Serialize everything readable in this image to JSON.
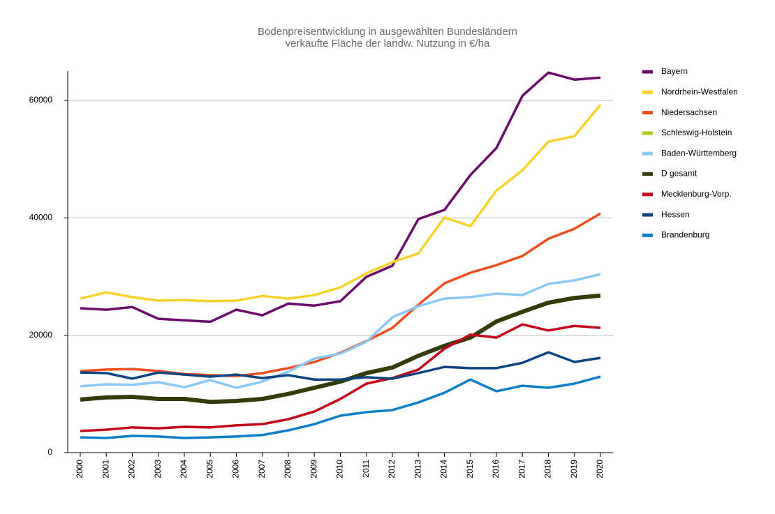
{
  "chart_data": {
    "type": "line",
    "title": "Bodenpreisentwicklung in ausgewählten Bundesländern",
    "subtitle": "verkaufte Fläche der landw. Nutzung in €/ha",
    "categories": [
      "2000",
      "2001",
      "2002",
      "2003",
      "2004",
      "2005",
      "2006",
      "2007",
      "2008",
      "2009",
      "2010",
      "2011",
      "2012",
      "2013",
      "2014",
      "2015",
      "2016",
      "2017",
      "2018",
      "2019",
      "2020"
    ],
    "ylim": [
      0,
      65000
    ],
    "yticks": [
      0,
      20000,
      40000,
      60000
    ],
    "grid": true,
    "legend": "right",
    "series": [
      {
        "name": "Bayern",
        "color": "#6b0a6b",
        "linewidth": 3.5,
        "values": [
          24600,
          24350,
          24800,
          22800,
          22550,
          22300,
          24350,
          23400,
          25400,
          25050,
          25800,
          29950,
          31850,
          39800,
          41350,
          47300,
          51900,
          60800,
          64750,
          63550,
          63900
        ]
      },
      {
        "name": "Nordrhein-Westfalen",
        "color": "#f7d22a",
        "linewidth": 3.5,
        "values": [
          26250,
          27300,
          26500,
          25900,
          26000,
          25800,
          25900,
          26700,
          26250,
          26850,
          28150,
          30550,
          32450,
          33950,
          40050,
          38600,
          44650,
          48100,
          53000,
          53900,
          59300
        ]
      },
      {
        "name": "Niedersachsen",
        "color": "#f04e1e",
        "linewidth": 3.5,
        "values": [
          13900,
          14150,
          14250,
          13900,
          13400,
          13200,
          13050,
          13550,
          14400,
          15450,
          17000,
          19000,
          21250,
          25200,
          28850,
          30650,
          31950,
          33500,
          36450,
          38150,
          40750
        ]
      },
      {
        "name": "Schleswig-Holstein",
        "color": "#a8cc1a",
        "linewidth": 3.5,
        "values": [
          null,
          null,
          null,
          null,
          null,
          null,
          null,
          null,
          null,
          null,
          null,
          null,
          null,
          null,
          null,
          null,
          null,
          null,
          null,
          null,
          null
        ]
      },
      {
        "name": "Baden-Württemberg",
        "color": "#8ac8f5",
        "linewidth": 3.5,
        "values": [
          11300,
          11650,
          11550,
          12000,
          11150,
          12350,
          11050,
          12100,
          13800,
          16050,
          16850,
          18900,
          23050,
          24950,
          26250,
          26500,
          27100,
          26850,
          28750,
          29350,
          30400
        ]
      },
      {
        "name": "D gesamt",
        "color": "#333d0a",
        "linewidth": 6,
        "values": [
          9050,
          9400,
          9500,
          9150,
          9150,
          8650,
          8800,
          9150,
          10000,
          11050,
          12100,
          13550,
          14500,
          16500,
          18200,
          19600,
          22350,
          24000,
          25550,
          26350,
          26750
        ]
      },
      {
        "name": "Mecklenburg-Vorp.",
        "color": "#c4001a",
        "linewidth": 3.5,
        "values": [
          3700,
          3900,
          4300,
          4150,
          4400,
          4300,
          4650,
          4850,
          5700,
          7000,
          9150,
          11750,
          12700,
          14150,
          17700,
          20100,
          19600,
          21850,
          20800,
          21600,
          21250
        ]
      },
      {
        "name": "Hessen",
        "color": "#0d4480",
        "linewidth": 3.5,
        "values": [
          13650,
          13550,
          12600,
          13650,
          13300,
          12950,
          13300,
          12700,
          13200,
          12450,
          12450,
          12850,
          12600,
          13550,
          14600,
          14400,
          14400,
          15300,
          17100,
          15450,
          16150
        ]
      },
      {
        "name": "Brandenburg",
        "color": "#0d7fc8",
        "linewidth": 3.5,
        "values": [
          2600,
          2500,
          2850,
          2750,
          2500,
          2600,
          2750,
          3000,
          3800,
          4850,
          6300,
          6900,
          7250,
          8550,
          10200,
          12450,
          10450,
          11400,
          11050,
          11750,
          12950
        ]
      }
    ]
  }
}
